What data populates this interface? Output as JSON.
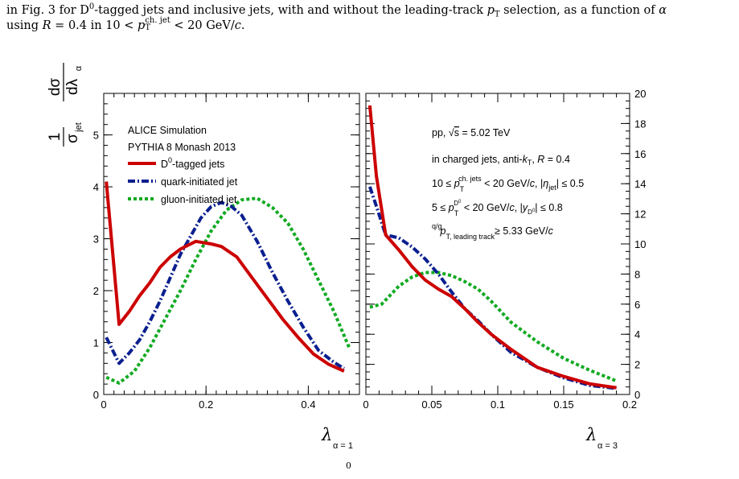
{
  "caption": {
    "line1_a": "in Fig. 3 for D",
    "line1_sup": "0",
    "line1_b": "-tagged jets and inclusive jets, with and without the leading-track ",
    "line1_pt": "p",
    "line1_pt_sub": "T",
    "line1_c": " selection, as a function of ",
    "line1_alpha": "α",
    "line2_a": "using ",
    "line2_R": "R",
    "line2_b": " = 0.4 in 10 < ",
    "line2_p": "p",
    "line2_p_sub": "T",
    "line2_p_sup": "ch. jet",
    "line2_c": " < 20 GeV/",
    "line2_cc": "c",
    "line2_d": ".",
    "bottom_sup": "0"
  },
  "chart_data": [
    {
      "type": "line",
      "panel": "left",
      "ylabel": "1/σ_jet dσ/dλ_α",
      "xlabel": "λ_{α = 1}",
      "xlim": [
        0,
        0.5
      ],
      "ylim": [
        0,
        5.8
      ],
      "x_ticks": [
        "0",
        "0.2",
        "0.4"
      ],
      "y_ticks": [
        "0",
        "1",
        "2",
        "3",
        "4",
        "5"
      ],
      "legend_placement": "top-left",
      "header_lines": [
        "ALICE Simulation",
        "PYTHIA 8 Monash 2013"
      ],
      "series": [
        {
          "name": "D0-tagged jets",
          "color": "#cc0000",
          "style": "solid",
          "x": [
            0.005,
            0.03,
            0.05,
            0.07,
            0.09,
            0.11,
            0.13,
            0.15,
            0.18,
            0.21,
            0.23,
            0.26,
            0.29,
            0.32,
            0.35,
            0.38,
            0.41,
            0.44,
            0.47
          ],
          "y": [
            4.1,
            1.35,
            1.6,
            1.9,
            2.15,
            2.45,
            2.65,
            2.8,
            2.95,
            2.9,
            2.85,
            2.65,
            2.25,
            1.85,
            1.45,
            1.1,
            0.78,
            0.58,
            0.45
          ]
        },
        {
          "name": "quark-initiated jet",
          "color": "#0a1f8f",
          "style": "dashdot",
          "x": [
            0.005,
            0.03,
            0.05,
            0.07,
            0.09,
            0.11,
            0.13,
            0.15,
            0.17,
            0.19,
            0.21,
            0.23,
            0.25,
            0.27,
            0.3,
            0.33,
            0.36,
            0.39,
            0.42,
            0.45,
            0.47
          ],
          "y": [
            1.1,
            0.6,
            0.8,
            1.05,
            1.4,
            1.8,
            2.25,
            2.7,
            3.05,
            3.4,
            3.62,
            3.7,
            3.62,
            3.45,
            2.95,
            2.35,
            1.8,
            1.3,
            0.85,
            0.62,
            0.5
          ]
        },
        {
          "name": "gluon-initiated jet",
          "color": "#11aa22",
          "style": "dotted",
          "x": [
            0.005,
            0.03,
            0.06,
            0.09,
            0.12,
            0.15,
            0.18,
            0.21,
            0.24,
            0.27,
            0.3,
            0.33,
            0.36,
            0.39,
            0.42,
            0.45,
            0.48
          ],
          "y": [
            0.33,
            0.22,
            0.45,
            0.9,
            1.45,
            2.0,
            2.6,
            3.15,
            3.55,
            3.75,
            3.78,
            3.6,
            3.3,
            2.8,
            2.2,
            1.6,
            0.9
          ]
        }
      ]
    },
    {
      "type": "line",
      "panel": "right",
      "xlabel": "λ_{α = 3}",
      "xlim": [
        0,
        0.2
      ],
      "ylim": [
        0,
        20
      ],
      "x_ticks": [
        "0",
        "0.05",
        "0.1",
        "0.15",
        "0.2"
      ],
      "y_ticks": [
        "0",
        "2",
        "4",
        "6",
        "8",
        "10",
        "12",
        "14",
        "16",
        "18",
        "20"
      ],
      "annotations": [
        "pp, √s = 5.02 TeV",
        "in charged jets, anti-k_T, R = 0.4",
        "10 ≤ p_T^{ch. jets} < 20 GeV/c, |η_jet| ≤ 0.5",
        "5 ≤ p_T^{D0} < 20 GeV/c, |y_D0| ≤ 0.8",
        "p_T, leading track^{q/g} ≥ 5.33 GeV/c"
      ],
      "series": [
        {
          "name": "D0-tagged jets",
          "color": "#cc0000",
          "style": "solid",
          "x": [
            0.003,
            0.008,
            0.015,
            0.025,
            0.035,
            0.045,
            0.055,
            0.065,
            0.075,
            0.085,
            0.095,
            0.11,
            0.13,
            0.15,
            0.17,
            0.19
          ],
          "y": [
            19.2,
            14.5,
            10.6,
            9.6,
            8.5,
            7.6,
            7.0,
            6.5,
            5.7,
            4.8,
            4.0,
            3.0,
            1.8,
            1.2,
            0.7,
            0.45
          ]
        },
        {
          "name": "quark-initiated jet",
          "color": "#0a1f8f",
          "style": "dashdot",
          "x": [
            0.003,
            0.008,
            0.015,
            0.025,
            0.035,
            0.045,
            0.055,
            0.065,
            0.075,
            0.085,
            0.095,
            0.11,
            0.13,
            0.15,
            0.17,
            0.19
          ],
          "y": [
            13.8,
            12.5,
            10.6,
            10.4,
            9.8,
            9.0,
            8.0,
            6.8,
            5.7,
            4.9,
            4.0,
            2.8,
            1.8,
            1.1,
            0.6,
            0.4
          ]
        },
        {
          "name": "gluon-initiated jet",
          "color": "#11aa22",
          "style": "dotted",
          "x": [
            0.003,
            0.012,
            0.025,
            0.035,
            0.045,
            0.055,
            0.065,
            0.075,
            0.085,
            0.095,
            0.11,
            0.13,
            0.15,
            0.17,
            0.19
          ],
          "y": [
            5.8,
            6.0,
            7.2,
            7.8,
            8.1,
            8.1,
            7.9,
            7.5,
            7.0,
            6.2,
            4.8,
            3.5,
            2.4,
            1.6,
            0.9
          ]
        }
      ]
    }
  ]
}
